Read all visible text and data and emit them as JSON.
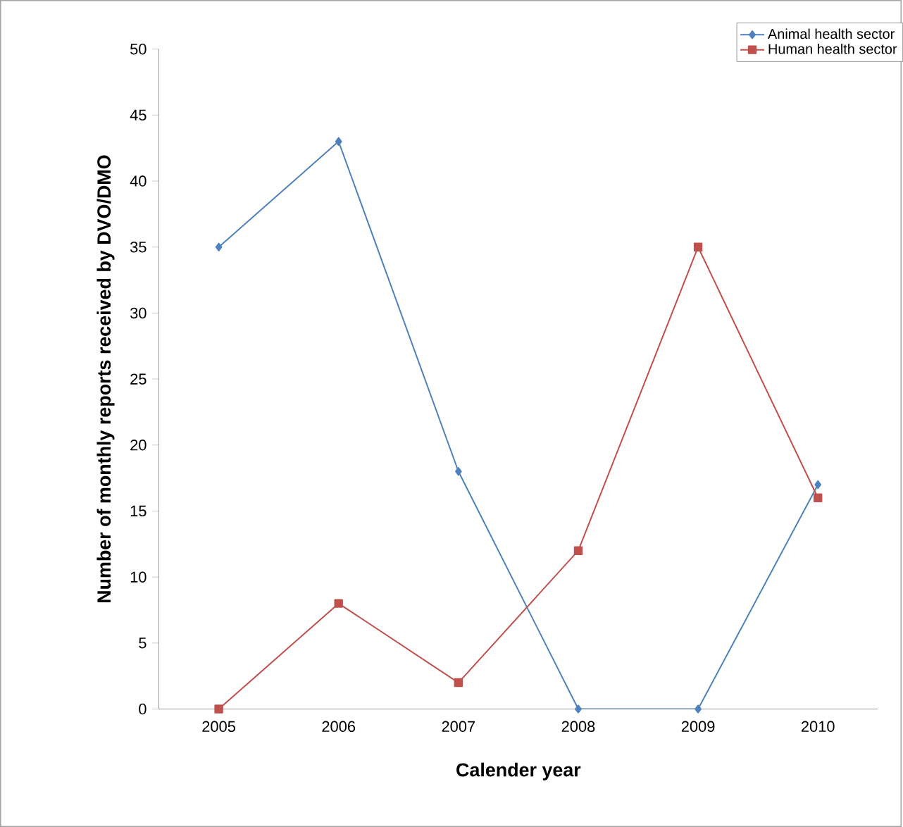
{
  "chart_data": {
    "type": "line",
    "xlabel": "Calender year",
    "ylabel": "Number of monthly reports received by DVO/DMO",
    "categories": [
      "2005",
      "2006",
      "2007",
      "2008",
      "2009",
      "2010"
    ],
    "series": [
      {
        "name": "Animal health sector",
        "color": "#4f81bd",
        "marker": "diamond",
        "values": [
          35,
          43,
          18,
          0,
          0,
          17
        ]
      },
      {
        "name": "Human health sector",
        "color": "#c0504d",
        "marker": "square",
        "values": [
          0,
          8,
          2,
          12,
          35,
          16
        ]
      }
    ],
    "ylim": [
      0,
      50
    ],
    "yticks": [
      0,
      5,
      10,
      15,
      20,
      25,
      30,
      35,
      40,
      45,
      50
    ],
    "grid": false,
    "legend": "top right",
    "line_style": "solid"
  }
}
